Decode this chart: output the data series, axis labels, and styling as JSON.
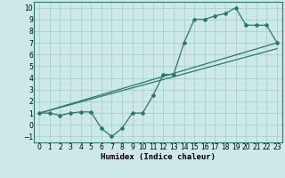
{
  "xlabel": "Humidex (Indice chaleur)",
  "bg_color": "#cde8e8",
  "grid_color": "#aacfcf",
  "line_color": "#2a7a6a",
  "xlim": [
    -0.5,
    23.5
  ],
  "ylim": [
    -1.5,
    10.5
  ],
  "xticks": [
    0,
    1,
    2,
    3,
    4,
    5,
    6,
    7,
    8,
    9,
    10,
    11,
    12,
    13,
    14,
    15,
    16,
    17,
    18,
    19,
    20,
    21,
    22,
    23
  ],
  "yticks": [
    -1,
    0,
    1,
    2,
    3,
    4,
    5,
    6,
    7,
    8,
    9,
    10
  ],
  "curve_x": [
    0,
    1,
    2,
    3,
    4,
    5,
    6,
    7,
    8,
    9,
    10,
    11,
    12,
    13,
    14,
    15,
    16,
    17,
    18,
    19,
    20,
    21,
    22,
    23
  ],
  "curve_y": [
    1,
    1,
    0.8,
    1,
    1.1,
    1.1,
    -0.3,
    -1,
    -0.3,
    1.0,
    1.0,
    2.5,
    4.3,
    4.3,
    7.0,
    9.0,
    9.0,
    9.3,
    9.5,
    10.0,
    8.5,
    8.5,
    8.5,
    7.0
  ],
  "line2_x": [
    0,
    23
  ],
  "line2_y": [
    1,
    7.0
  ],
  "line3_x": [
    0,
    23
  ],
  "line3_y": [
    1,
    6.5
  ]
}
